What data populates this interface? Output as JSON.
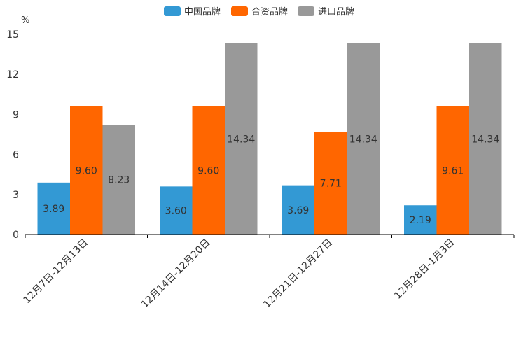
{
  "chart_data": {
    "type": "bar",
    "title": "",
    "ylabel": "%",
    "xlabel": "",
    "ylim": [
      0,
      15
    ],
    "yticks": [
      0,
      3,
      6,
      9,
      12,
      15
    ],
    "grid": false,
    "legend_position": "top-center",
    "categories": [
      "12月7日-12月13日",
      "12月14日-12月20日",
      "12月21日-12月27日",
      "12月28日-1月3日"
    ],
    "series": [
      {
        "name": "中国品牌",
        "color": "#3399d4",
        "values": [
          3.89,
          3.6,
          3.69,
          2.19
        ],
        "labels": [
          "3.89",
          "3.60",
          "3.69",
          "2.19"
        ]
      },
      {
        "name": "合资品牌",
        "color": "#ff6600",
        "values": [
          9.6,
          9.6,
          7.71,
          9.61
        ],
        "labels": [
          "9.60",
          "9.60",
          "7.71",
          "9.61"
        ]
      },
      {
        "name": "进口品牌",
        "color": "#999999",
        "values": [
          8.23,
          14.34,
          14.34,
          14.34
        ],
        "labels": [
          "8.23",
          "14.34",
          "14.34",
          "14.34"
        ]
      }
    ]
  }
}
